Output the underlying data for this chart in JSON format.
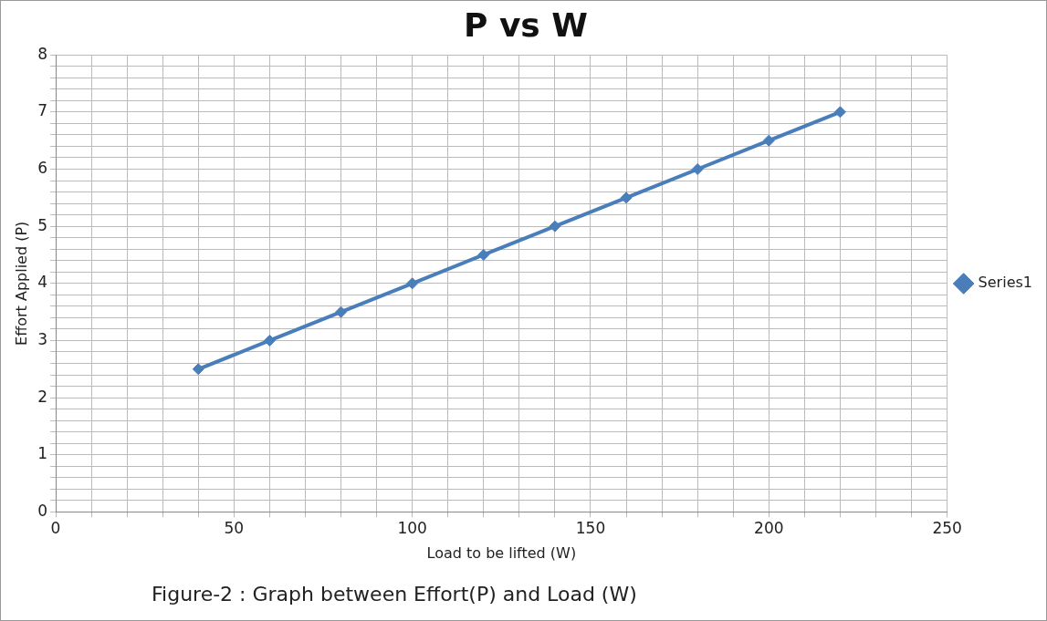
{
  "chart_data": {
    "type": "line",
    "title": "P vs W",
    "xlabel": "Load to be lifted (W)",
    "ylabel": "Effort Applied (P)",
    "x": [
      40,
      60,
      80,
      100,
      120,
      140,
      160,
      180,
      200,
      220
    ],
    "series": [
      {
        "name": "Series1",
        "color": "#4a7ebb",
        "values": [
          2.5,
          3,
          3.5,
          4,
          4.5,
          5,
          5.5,
          6,
          6.5,
          7
        ]
      }
    ],
    "xlim": [
      0,
      250
    ],
    "xticks": [
      0,
      {
        "value": 10,
        "label": null
      },
      {
        "value": 20,
        "label": null
      },
      {
        "value": 30,
        "label": null
      },
      {
        "value": 40,
        "label": null
      },
      50,
      {
        "value": 60,
        "label": null
      },
      {
        "value": 70,
        "label": null
      },
      {
        "value": 80,
        "label": null
      },
      {
        "value": 90,
        "label": null
      },
      100,
      {
        "value": 110,
        "label": null
      },
      {
        "value": 120,
        "label": null
      },
      {
        "value": 130,
        "label": null
      },
      {
        "value": 140,
        "label": null
      },
      150,
      {
        "value": 160,
        "label": null
      },
      {
        "value": 170,
        "label": null
      },
      {
        "value": 180,
        "label": null
      },
      {
        "value": 190,
        "label": null
      },
      200,
      {
        "value": 210,
        "label": null
      },
      {
        "value": 220,
        "label": null
      },
      {
        "value": 230,
        "label": null
      },
      {
        "value": 240,
        "label": null
      },
      250
    ],
    "ylim": [
      0,
      8
    ],
    "yticks": [
      0,
      {
        "value": 0.2,
        "label": null
      },
      {
        "value": 0.4,
        "label": null
      },
      {
        "value": 0.6,
        "label": null
      },
      {
        "value": 0.8,
        "label": null
      },
      1,
      {
        "value": 1.2,
        "label": null
      },
      {
        "value": 1.4,
        "label": null
      },
      {
        "value": 1.6,
        "label": null
      },
      {
        "value": 1.8,
        "label": null
      },
      2,
      {
        "value": 2.2,
        "label": null
      },
      {
        "value": 2.4,
        "label": null
      },
      {
        "value": 2.6,
        "label": null
      },
      {
        "value": 2.8,
        "label": null
      },
      3,
      {
        "value": 3.2,
        "label": null
      },
      {
        "value": 3.4,
        "label": null
      },
      {
        "value": 3.6,
        "label": null
      },
      {
        "value": 3.8,
        "label": null
      },
      4,
      {
        "value": 4.2,
        "label": null
      },
      {
        "value": 4.4,
        "label": null
      },
      {
        "value": 4.6,
        "label": null
      },
      {
        "value": 4.8,
        "label": null
      },
      5,
      {
        "value": 5.2,
        "label": null
      },
      {
        "value": 5.4,
        "label": null
      },
      {
        "value": 5.6,
        "label": null
      },
      {
        "value": 5.8,
        "label": null
      },
      6,
      {
        "value": 6.2,
        "label": null
      },
      {
        "value": 6.4,
        "label": null
      },
      {
        "value": 6.6,
        "label": null
      },
      {
        "value": 6.8,
        "label": null
      },
      7,
      {
        "value": 7.2,
        "label": null
      },
      {
        "value": 7.4,
        "label": null
      },
      {
        "value": 7.6,
        "label": null
      },
      {
        "value": 7.8,
        "label": null
      },
      8
    ],
    "grid": true,
    "legend": "right",
    "marker": "diamond",
    "line_style": "solid",
    "annotations": [
      "Figure-2 : Graph between Effort(P) and  Load (W)"
    ]
  }
}
